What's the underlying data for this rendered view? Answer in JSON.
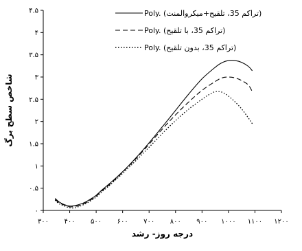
{
  "chart_data": {
    "type": "line",
    "title": "",
    "xlabel": "درجه روز- رشد",
    "ylabel": "شاخص سطح برگ",
    "xlim": [
      300,
      1200
    ],
    "ylim": [
      0,
      4.5
    ],
    "x_ticks": [
      300,
      400,
      500,
      600,
      700,
      800,
      900,
      1000,
      1100,
      1200
    ],
    "x_tick_labels": [
      "۳۰۰",
      "۴۰۰",
      "۵۰۰",
      "۶۰۰",
      "۷۰۰",
      "۸۰۰",
      "۹۰۰",
      "۱۰۰۰",
      "۱۱۰۰",
      "۱۲۰۰"
    ],
    "y_ticks": [
      0,
      0.5,
      1,
      1.5,
      2,
      2.5,
      3,
      3.5,
      4,
      4.5
    ],
    "y_tick_labels": [
      "۰",
      "۰.۵",
      "۱",
      "۱.۵",
      "۲",
      "۲.۵",
      "۳",
      "۳.۵",
      "۴",
      "۴.۵"
    ],
    "grid": false,
    "legend_position": "top-right",
    "series": [
      {
        "name": "Poly. (تراکم 35، تلقیح+میکروالمنت)",
        "style": "solid",
        "color": "#000000",
        "points": [
          [
            345,
            0.27
          ],
          [
            360,
            0.19
          ],
          [
            380,
            0.13
          ],
          [
            400,
            0.1
          ],
          [
            420,
            0.11
          ],
          [
            440,
            0.14
          ],
          [
            460,
            0.19
          ],
          [
            480,
            0.26
          ],
          [
            500,
            0.34
          ],
          [
            520,
            0.45
          ],
          [
            550,
            0.6
          ],
          [
            600,
            0.87
          ],
          [
            650,
            1.18
          ],
          [
            700,
            1.52
          ],
          [
            750,
            1.88
          ],
          [
            800,
            2.25
          ],
          [
            850,
            2.62
          ],
          [
            900,
            2.96
          ],
          [
            950,
            3.22
          ],
          [
            975,
            3.32
          ],
          [
            1000,
            3.37
          ],
          [
            1025,
            3.37
          ],
          [
            1050,
            3.33
          ],
          [
            1075,
            3.24
          ],
          [
            1090,
            3.14
          ]
        ]
      },
      {
        "name": "Poly. (تراکم 35، با تلقیح)",
        "style": "dashed",
        "color": "#000000",
        "points": [
          [
            345,
            0.25
          ],
          [
            360,
            0.17
          ],
          [
            380,
            0.12
          ],
          [
            400,
            0.08
          ],
          [
            420,
            0.09
          ],
          [
            440,
            0.12
          ],
          [
            460,
            0.17
          ],
          [
            480,
            0.24
          ],
          [
            500,
            0.32
          ],
          [
            520,
            0.43
          ],
          [
            550,
            0.58
          ],
          [
            600,
            0.86
          ],
          [
            650,
            1.16
          ],
          [
            700,
            1.49
          ],
          [
            750,
            1.83
          ],
          [
            800,
            2.15
          ],
          [
            850,
            2.44
          ],
          [
            900,
            2.7
          ],
          [
            950,
            2.9
          ],
          [
            975,
            2.98
          ],
          [
            1000,
            3.0
          ],
          [
            1025,
            2.98
          ],
          [
            1050,
            2.92
          ],
          [
            1075,
            2.82
          ],
          [
            1090,
            2.67
          ]
        ]
      },
      {
        "name": "Poly. (تراکم 35، بدون تلقیح)",
        "style": "dotted",
        "color": "#000000",
        "points": [
          [
            345,
            0.23
          ],
          [
            360,
            0.15
          ],
          [
            380,
            0.1
          ],
          [
            400,
            0.06
          ],
          [
            420,
            0.06
          ],
          [
            440,
            0.1
          ],
          [
            460,
            0.15
          ],
          [
            480,
            0.22
          ],
          [
            500,
            0.3
          ],
          [
            520,
            0.41
          ],
          [
            550,
            0.56
          ],
          [
            600,
            0.83
          ],
          [
            650,
            1.12
          ],
          [
            700,
            1.42
          ],
          [
            750,
            1.73
          ],
          [
            800,
            2.02
          ],
          [
            850,
            2.28
          ],
          [
            900,
            2.5
          ],
          [
            925,
            2.6
          ],
          [
            950,
            2.67
          ],
          [
            975,
            2.66
          ],
          [
            1000,
            2.57
          ],
          [
            1025,
            2.44
          ],
          [
            1050,
            2.28
          ],
          [
            1075,
            2.08
          ],
          [
            1090,
            1.95
          ]
        ]
      }
    ]
  }
}
